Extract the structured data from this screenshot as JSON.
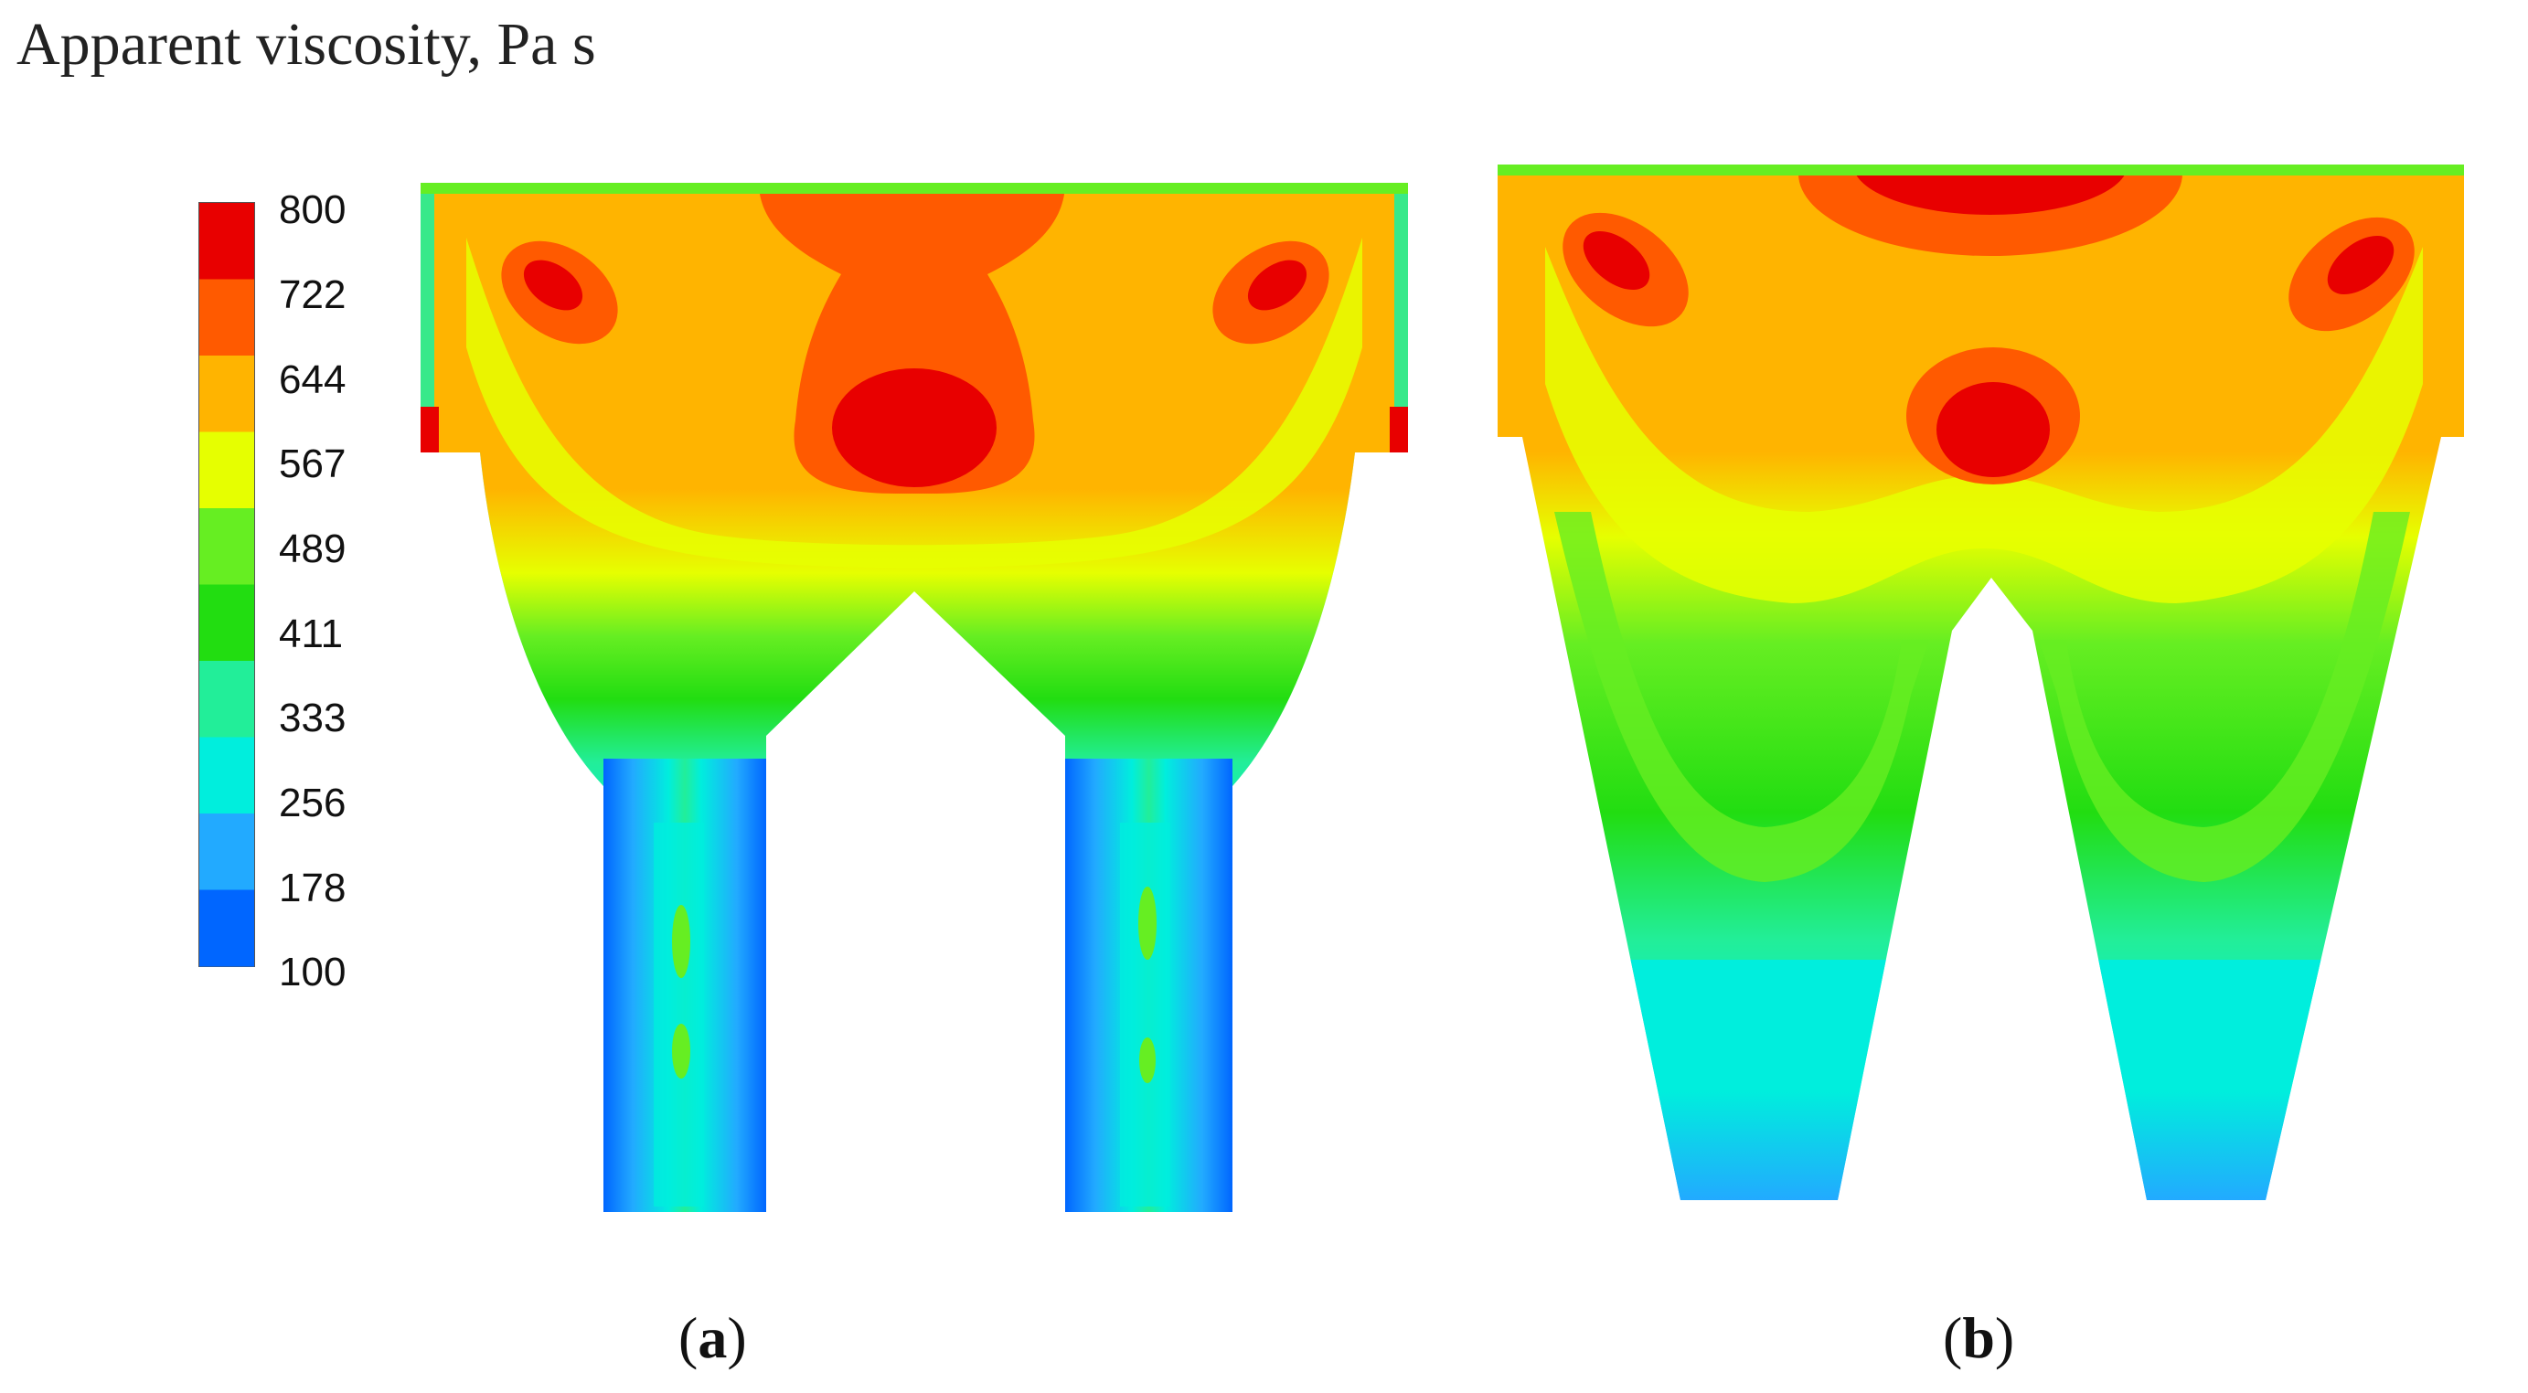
{
  "title": "Apparent viscosity, Pa s",
  "colorbar": {
    "ticks": [
      "800",
      "722",
      "644",
      "567",
      "489",
      "411",
      "333",
      "256",
      "178",
      "100"
    ],
    "min": 100,
    "max": 800,
    "colors": [
      "#e80000",
      "#ff5a00",
      "#ffb400",
      "#e6ff00",
      "#66ee22",
      "#22dd11",
      "#22ee99",
      "#00eedd",
      "#22aaff",
      "#0066ff"
    ]
  },
  "panels": [
    {
      "id": "a",
      "caption_open": "(",
      "caption_letter": "a",
      "caption_close": ")"
    },
    {
      "id": "b",
      "caption_open": "(",
      "caption_letter": "b",
      "caption_close": ")"
    }
  ]
}
